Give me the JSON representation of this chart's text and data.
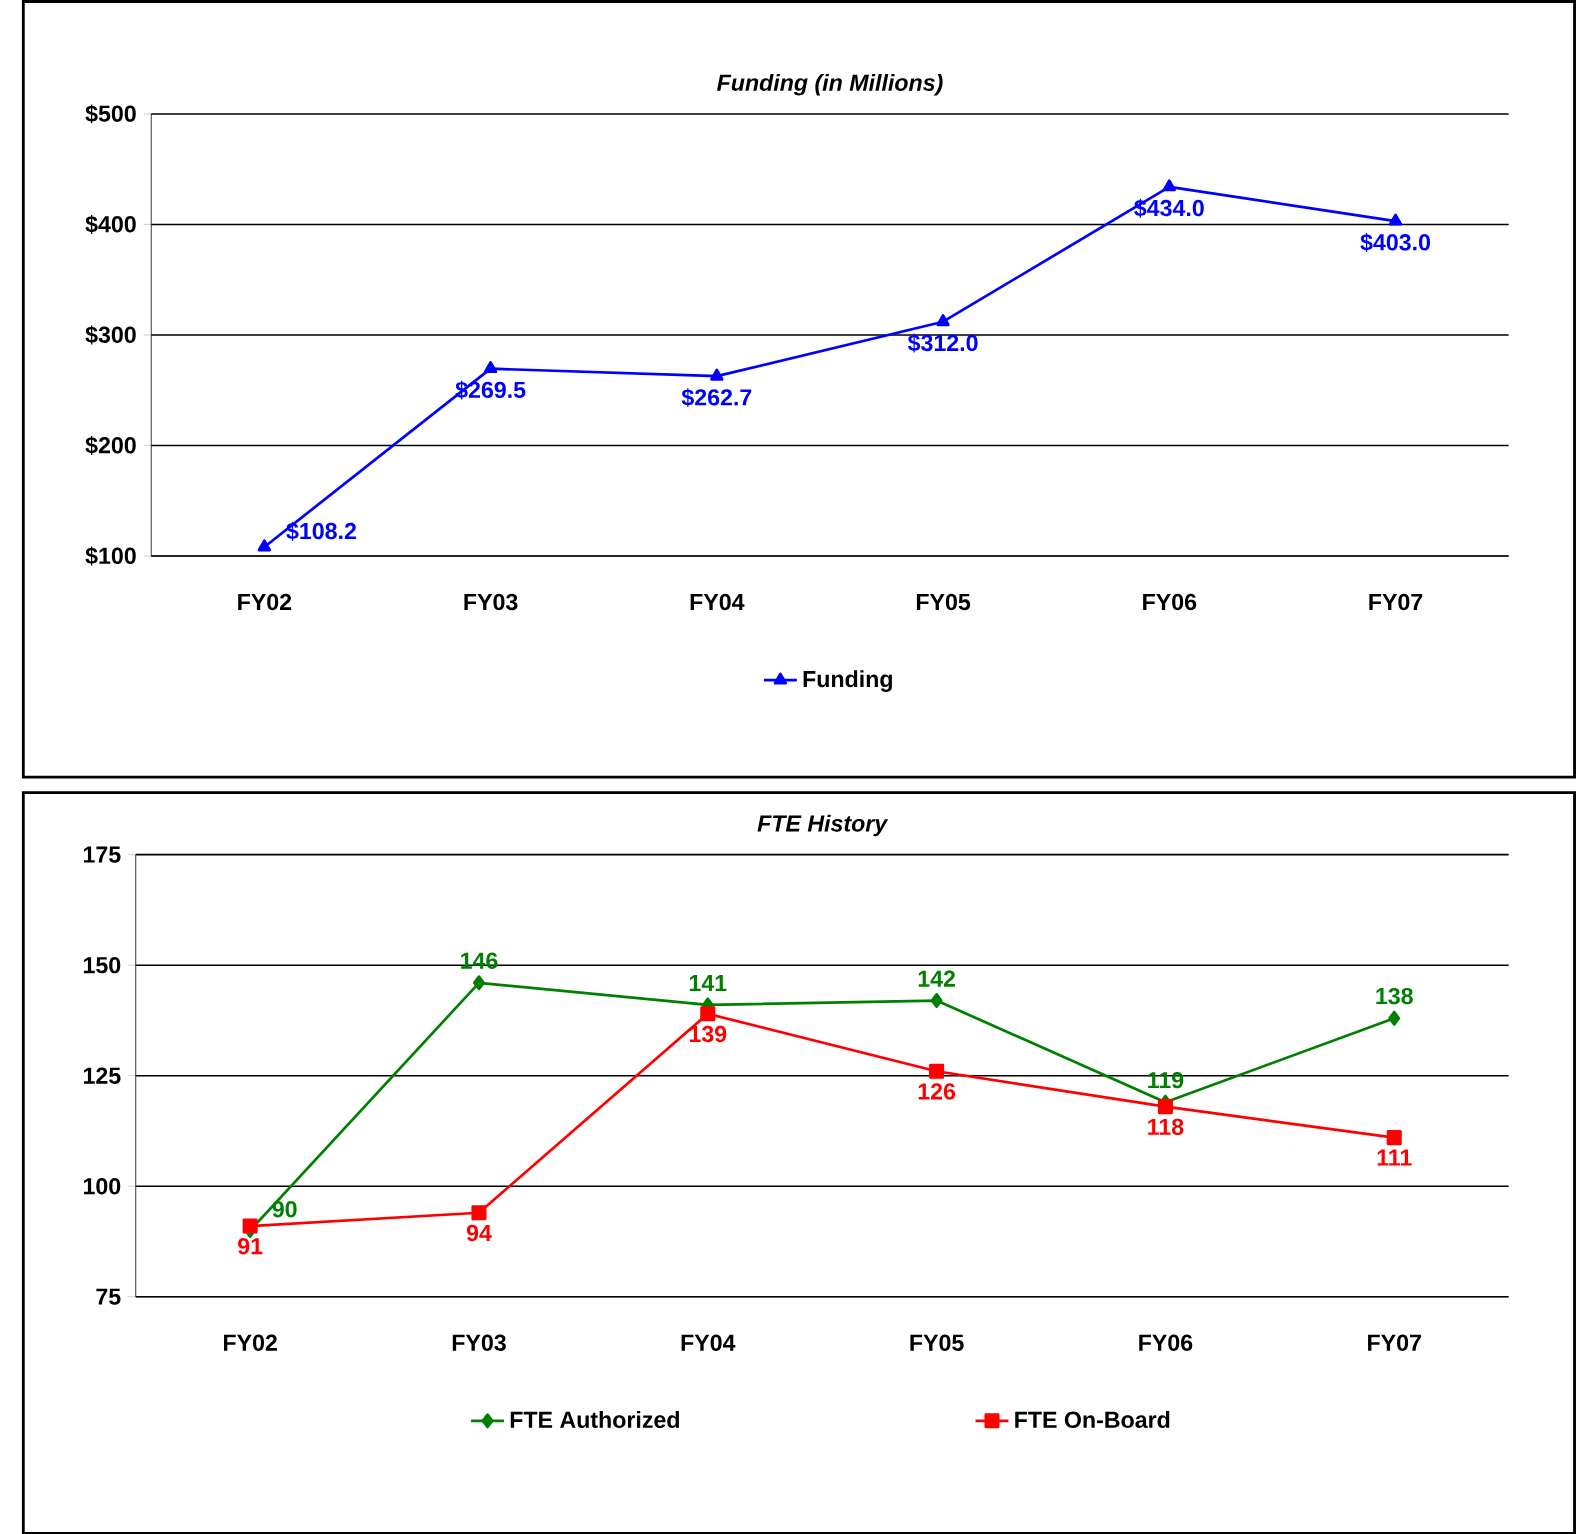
{
  "chart_data": [
    {
      "type": "line",
      "title": "Funding (in Millions)",
      "categories": [
        "FY02",
        "FY03",
        "FY04",
        "FY05",
        "FY06",
        "FY07"
      ],
      "series": [
        {
          "name": "Funding",
          "color": "#0000ff",
          "marker": "triangle",
          "values": [
            108.2,
            269.5,
            262.7,
            312.0,
            434.0,
            403.0
          ],
          "value_labels": [
            "$108.2",
            "$269.5",
            "$262.7",
            "$312.0",
            "$434.0",
            "$403.0"
          ]
        }
      ],
      "ylim": [
        100,
        500
      ],
      "yticks": [
        {
          "value": 100,
          "label": "$100"
        },
        {
          "value": 200,
          "label": "$200"
        },
        {
          "value": 300,
          "label": "$300"
        },
        {
          "value": 400,
          "label": "$400"
        },
        {
          "value": 500,
          "label": "$500"
        }
      ],
      "grid": "y",
      "legend": "bottom"
    },
    {
      "type": "line",
      "title": "FTE History",
      "categories": [
        "FY02",
        "FY03",
        "FY04",
        "FY05",
        "FY06",
        "FY07"
      ],
      "series": [
        {
          "name": "FTE Authorized",
          "color": "#008000",
          "marker": "diamond",
          "values": [
            90,
            146,
            141,
            142,
            119,
            138
          ]
        },
        {
          "name": "FTE On-Board",
          "color": "#ff0000",
          "marker": "square",
          "values": [
            91,
            94,
            139,
            126,
            118,
            111
          ]
        }
      ],
      "ylim": [
        75,
        175
      ],
      "yticks": [
        75,
        100,
        125,
        150,
        175
      ],
      "grid": "y",
      "legend": "bottom",
      "data_labels": true
    }
  ]
}
